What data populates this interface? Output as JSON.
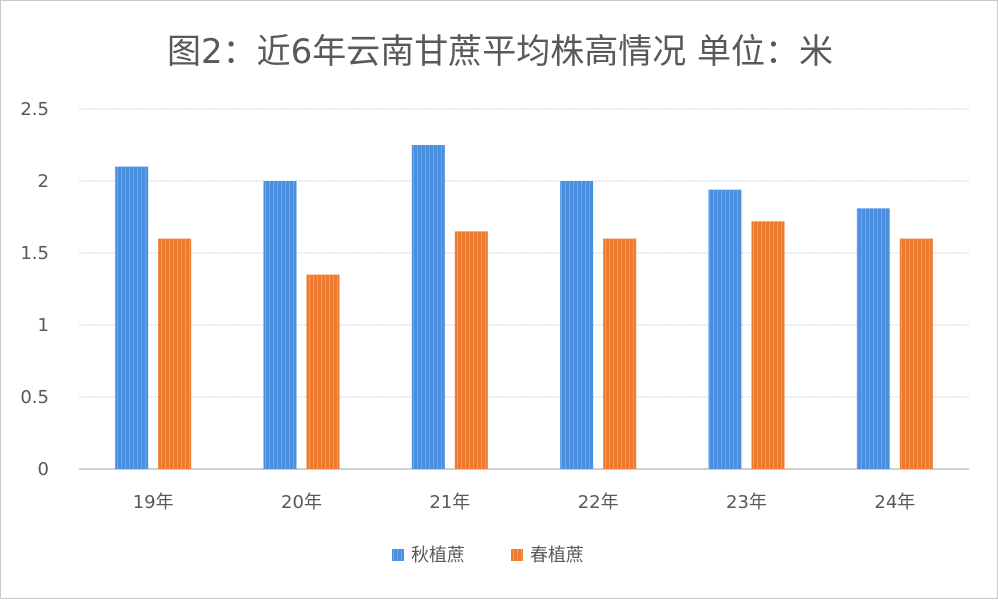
{
  "chart_data": {
    "type": "bar",
    "title": "图2：近6年云南甘蔗平均株高情况   单位：米",
    "categories": [
      "19年",
      "20年",
      "21年",
      "22年",
      "23年",
      "24年"
    ],
    "series": [
      {
        "name": "秋植蔗",
        "color": "#4a8fe0",
        "values": [
          2.1,
          2.0,
          2.25,
          2.0,
          1.94,
          1.81
        ]
      },
      {
        "name": "春植蔗",
        "color": "#ee7a30",
        "values": [
          1.6,
          1.35,
          1.65,
          1.6,
          1.72,
          1.6
        ]
      }
    ],
    "ylim": [
      0,
      2.5
    ],
    "yticks": [
      "0",
      "0.5",
      "1",
      "1.5",
      "2",
      "2.5"
    ],
    "grid": true,
    "legend": "bottom"
  }
}
